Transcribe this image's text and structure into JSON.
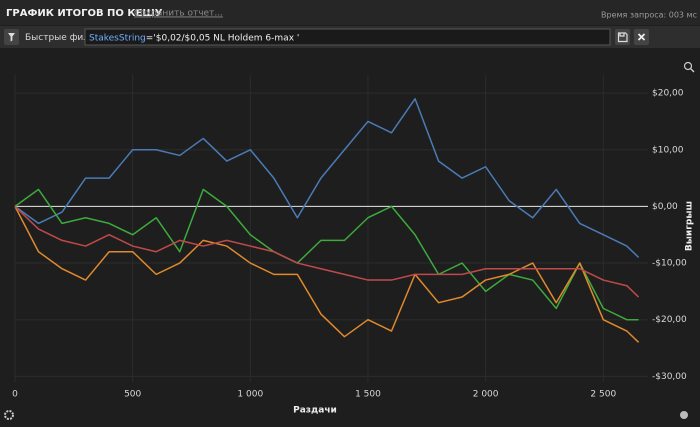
{
  "header": {
    "title": "ГРАФИК ИТОГОВ ПО КЕШУ",
    "save_link": "Сохранить отчет...",
    "query_time": "Время запроса: 003 мс"
  },
  "filter": {
    "quick_filters": "Быстрые фильтры",
    "field": "StakesString",
    "value": "='$0,02/$0,05 NL Holdem 6-max '"
  },
  "chart_data": {
    "type": "line",
    "xlabel": "Раздачи",
    "ylabel": "Выигрыш",
    "x": [
      0,
      100,
      200,
      300,
      400,
      500,
      600,
      700,
      800,
      900,
      1000,
      1100,
      1200,
      1300,
      1400,
      1500,
      1600,
      1700,
      1800,
      1900,
      2000,
      2100,
      2200,
      2300,
      2400,
      2500,
      2600,
      2650
    ],
    "series": [
      {
        "color": "#4a7bb7",
        "values": [
          0,
          -3,
          -1,
          5,
          5,
          10,
          10,
          9,
          12,
          8,
          10,
          5,
          -2,
          5,
          10,
          15,
          13,
          19,
          8,
          5,
          7,
          1,
          -2,
          3,
          -3,
          -5,
          -7,
          -9
        ]
      },
      {
        "color": "#3daa3d",
        "values": [
          0,
          3,
          -3,
          -2,
          -3,
          -5,
          -2,
          -8,
          3,
          0,
          -5,
          -8,
          -10,
          -6,
          -6,
          -2,
          0,
          -5,
          -12,
          -10,
          -15,
          -12,
          -13,
          -18,
          -10,
          -18,
          -20,
          -20
        ]
      },
      {
        "color": "#e08a2c",
        "values": [
          0,
          -8,
          -11,
          -13,
          -8,
          -8,
          -12,
          -10,
          -6,
          -7,
          -10,
          -12,
          -12,
          -19,
          -23,
          -20,
          -22,
          -12,
          -17,
          -16,
          -13,
          -12,
          -10,
          -17,
          -10,
          -20,
          -22,
          -24
        ]
      },
      {
        "color": "#c04a4a",
        "values": [
          0,
          -4,
          -6,
          -7,
          -5,
          -7,
          -8,
          -6,
          -7,
          -6,
          -7,
          -8,
          -10,
          -11,
          -12,
          -13,
          -13,
          -12,
          -12,
          -12,
          -11,
          -11,
          -11,
          -11,
          -11,
          -13,
          -14,
          -16
        ]
      }
    ],
    "xlim": [
      0,
      2690
    ],
    "ylim": [
      -31,
      23.2
    ],
    "xticks": [
      0,
      500,
      {
        "value": 1000,
        "label": "1 000"
      },
      {
        "value": 1500,
        "label": "1 500"
      },
      {
        "value": 2000,
        "label": "2 000"
      },
      {
        "value": 2500,
        "label": "2 500"
      }
    ],
    "yticks": [
      {
        "value": 20,
        "label": "$20,00"
      },
      {
        "value": 10,
        "label": "$10,00"
      },
      {
        "value": 0,
        "label": "$0,00"
      },
      {
        "value": -10,
        "label": "-$10,00"
      },
      {
        "value": -20,
        "label": "-$20,00"
      },
      {
        "value": -30,
        "label": "-$30,00"
      }
    ],
    "grid": true,
    "zero_line_color": "#e8e8e8"
  }
}
